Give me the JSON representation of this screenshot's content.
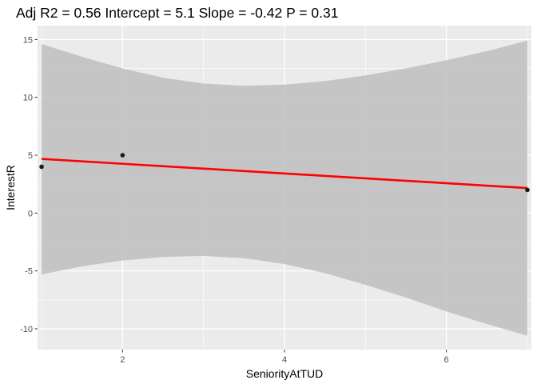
{
  "chart_data": {
    "type": "scatter",
    "title": "Adj R2 =  0.56 Intercept = 5.1  Slope = -0.42  P = 0.31",
    "xlabel": "SeniorityAtTUD",
    "ylabel": "InterestR",
    "xlim": [
      0.95,
      7.05
    ],
    "ylim": [
      -11.8,
      16.2
    ],
    "x_ticks": [
      2,
      4,
      6
    ],
    "x_tick_labels": [
      "2",
      "4",
      "6"
    ],
    "y_ticks": [
      -10,
      -5,
      0,
      5,
      10,
      15
    ],
    "y_tick_labels": [
      "-10",
      "-5",
      "0",
      "5",
      "10",
      "15"
    ],
    "grid": true,
    "points": [
      {
        "x": 1,
        "y": 4
      },
      {
        "x": 2,
        "y": 5
      },
      {
        "x": 7,
        "y": 2
      }
    ],
    "fit_line": {
      "x": [
        1,
        7
      ],
      "y": [
        4.68,
        2.16
      ],
      "color": "#ff0000"
    },
    "confidence_band": {
      "x": [
        1,
        1.5,
        2,
        2.5,
        3,
        3.5,
        4,
        4.5,
        5,
        5.5,
        6,
        6.5,
        7
      ],
      "upper": [
        14.6,
        13.5,
        12.5,
        11.7,
        11.2,
        11.0,
        11.1,
        11.4,
        11.9,
        12.5,
        13.2,
        14.0,
        14.9
      ],
      "lower": [
        -5.3,
        -4.6,
        -4.1,
        -3.8,
        -3.7,
        -3.9,
        -4.4,
        -5.2,
        -6.2,
        -7.3,
        -8.5,
        -9.6,
        -10.6
      ],
      "color": "#bebebe"
    },
    "colors": {
      "panel_background": "#ebebeb",
      "grid_line": "#ffffff",
      "point": "#1a1a1a",
      "tick_text": "#4d4d4d",
      "title_text": "#000000"
    }
  }
}
